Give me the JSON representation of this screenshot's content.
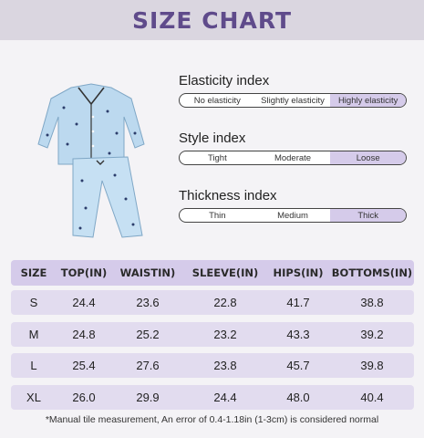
{
  "header": {
    "title": "SIZE CHART"
  },
  "indices": [
    {
      "title": "Elasticity index",
      "options": [
        "No elasticity",
        "Slightly elasticity",
        "Highly elasticity"
      ],
      "selected": 2
    },
    {
      "title": "Style index",
      "options": [
        "Tight",
        "Moderate",
        "Loose"
      ],
      "selected": 2
    },
    {
      "title": "Thickness index",
      "options": [
        "Thin",
        "Medium",
        "Thick"
      ],
      "selected": 2
    }
  ],
  "table": {
    "headers": [
      "SIZE",
      "TOP(IN)",
      "WAISTIN)",
      "SLEEVE(IN)",
      "HIPS(IN)",
      "BOTTOMS(IN)"
    ],
    "rows": [
      [
        "S",
        "24.4",
        "23.6",
        "22.8",
        "41.7",
        "38.8"
      ],
      [
        "M",
        "24.8",
        "25.2",
        "23.2",
        "43.3",
        "39.2"
      ],
      [
        "L",
        "25.4",
        "27.6",
        "23.8",
        "45.7",
        "39.8"
      ],
      [
        "XL",
        "26.0",
        "29.9",
        "24.4",
        "48.0",
        "40.4"
      ]
    ]
  },
  "note": "*Manual tile measurement, An error of 0.4-1.18in (1-3cm) is considered normal",
  "colors": {
    "accent": "#5f4b8b",
    "highlight": "#d5cbea",
    "row": "#e2dcef",
    "garment": "#bcd9ef"
  }
}
